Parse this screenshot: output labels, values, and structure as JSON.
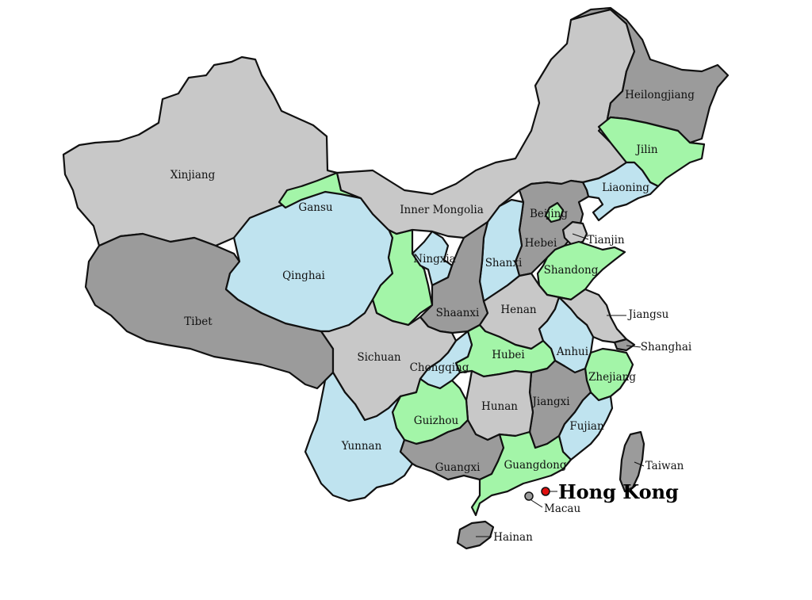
{
  "colors": {
    "light_gray": "#c8c8c8",
    "dark_gray": "#9b9b9b",
    "light_blue": "#bfe3ef",
    "light_green": "#a3f5a8",
    "hong_kong_dot": "#e01010",
    "macau_dot": "#9b9b9b",
    "border": "#111111"
  },
  "regions": [
    {
      "key": "xinjiang",
      "name": "Xinjiang",
      "fill": "light_gray"
    },
    {
      "key": "tibet",
      "name": "Tibet",
      "fill": "dark_gray"
    },
    {
      "key": "qinghai",
      "name": "Qinghai",
      "fill": "light_blue"
    },
    {
      "key": "gansu",
      "name": "Gansu",
      "fill": "light_green"
    },
    {
      "key": "inner_mongolia",
      "name": "Inner Mongolia",
      "fill": "light_gray"
    },
    {
      "key": "heilongjiang",
      "name": "Heilongjiang",
      "fill": "dark_gray"
    },
    {
      "key": "jilin",
      "name": "Jilin",
      "fill": "light_green"
    },
    {
      "key": "liaoning",
      "name": "Liaoning",
      "fill": "light_blue"
    },
    {
      "key": "beijing",
      "name": "Beijing",
      "fill": "light_green"
    },
    {
      "key": "tianjin",
      "name": "Tianjin",
      "fill": "light_gray"
    },
    {
      "key": "hebei",
      "name": "Hebei",
      "fill": "dark_gray"
    },
    {
      "key": "shanxi",
      "name": "Shanxi",
      "fill": "light_blue"
    },
    {
      "key": "ningxia",
      "name": "Ningxia",
      "fill": "light_blue"
    },
    {
      "key": "shaanxi",
      "name": "Shaanxi",
      "fill": "dark_gray"
    },
    {
      "key": "shandong",
      "name": "Shandong",
      "fill": "light_green"
    },
    {
      "key": "henan",
      "name": "Henan",
      "fill": "light_gray"
    },
    {
      "key": "jiangsu",
      "name": "Jiangsu",
      "fill": "light_gray"
    },
    {
      "key": "shanghai",
      "name": "Shanghai",
      "fill": "dark_gray"
    },
    {
      "key": "anhui",
      "name": "Anhui",
      "fill": "light_blue"
    },
    {
      "key": "hubei",
      "name": "Hubei",
      "fill": "light_green"
    },
    {
      "key": "sichuan",
      "name": "Sichuan",
      "fill": "light_gray"
    },
    {
      "key": "chongqing",
      "name": "Chongqing",
      "fill": "light_blue"
    },
    {
      "key": "zhejiang",
      "name": "Zhejiang",
      "fill": "light_green"
    },
    {
      "key": "jiangxi",
      "name": "Jiangxi",
      "fill": "dark_gray"
    },
    {
      "key": "hunan",
      "name": "Hunan",
      "fill": "light_gray"
    },
    {
      "key": "guizhou",
      "name": "Guizhou",
      "fill": "light_green"
    },
    {
      "key": "yunnan",
      "name": "Yunnan",
      "fill": "light_blue"
    },
    {
      "key": "fujian",
      "name": "Fujian",
      "fill": "light_blue"
    },
    {
      "key": "guangxi",
      "name": "Guangxi",
      "fill": "dark_gray"
    },
    {
      "key": "guangdong",
      "name": "Guangdong",
      "fill": "light_green"
    },
    {
      "key": "taiwan",
      "name": "Taiwan",
      "fill": "dark_gray"
    },
    {
      "key": "hainan",
      "name": "Hainan",
      "fill": "dark_gray"
    }
  ],
  "special": {
    "hong_kong": "Hong Kong",
    "macau": "Macau"
  }
}
